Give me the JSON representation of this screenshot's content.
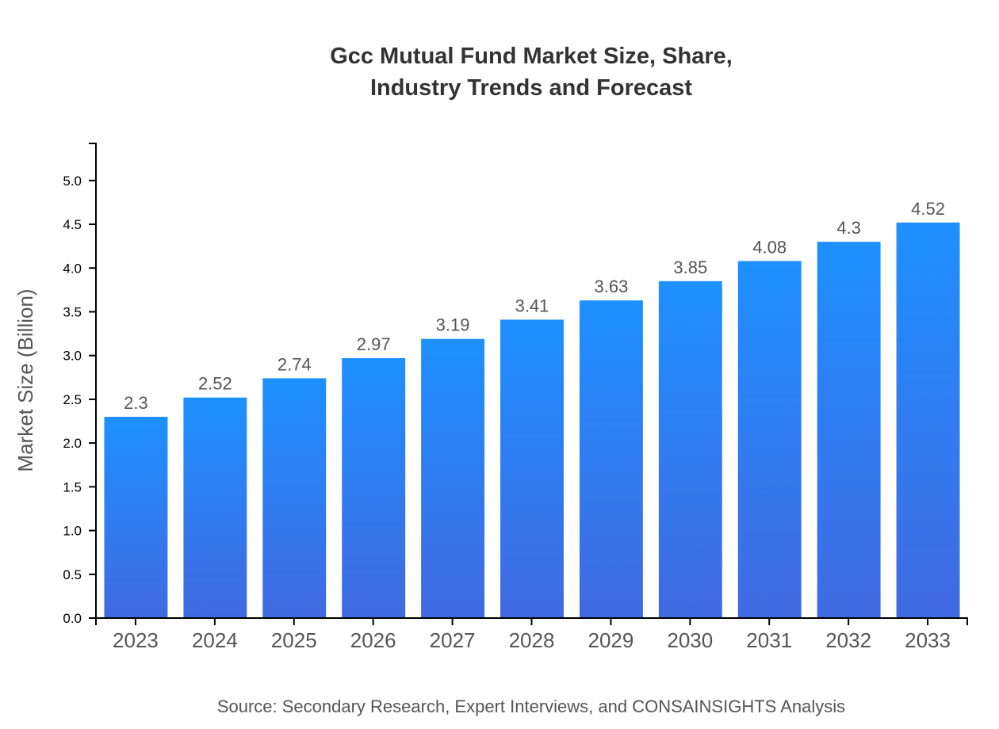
{
  "chart_data": {
    "type": "bar",
    "title_lines": [
      "Gcc Mutual Fund Market Size, Share,",
      "Industry Trends and Forecast"
    ],
    "categories": [
      "2023",
      "2024",
      "2025",
      "2026",
      "2027",
      "2028",
      "2029",
      "2030",
      "2031",
      "2032",
      "2033"
    ],
    "values": [
      2.3,
      2.52,
      2.74,
      2.97,
      3.19,
      3.41,
      3.63,
      3.85,
      4.08,
      4.3,
      4.52
    ],
    "data_labels": [
      "2.3",
      "2.52",
      "2.74",
      "2.97",
      "3.19",
      "3.41",
      "3.63",
      "3.85",
      "4.08",
      "4.3",
      "4.52"
    ],
    "xlabel": "",
    "ylabel": "Market Size (Billion)",
    "ylim": [
      0,
      5.424
    ],
    "yticks": [
      "0.0",
      "0.5",
      "1.0",
      "1.5",
      "2.0",
      "2.5",
      "3.0",
      "3.5",
      "4.0",
      "4.5",
      "5.0"
    ],
    "grid": false,
    "colors": {
      "bar_top": "#1e90ff",
      "bar_bottom": "#4169e1"
    },
    "source": "Source: Secondary Research, Expert Interviews, and CONSAINSIGHTS Analysis"
  }
}
